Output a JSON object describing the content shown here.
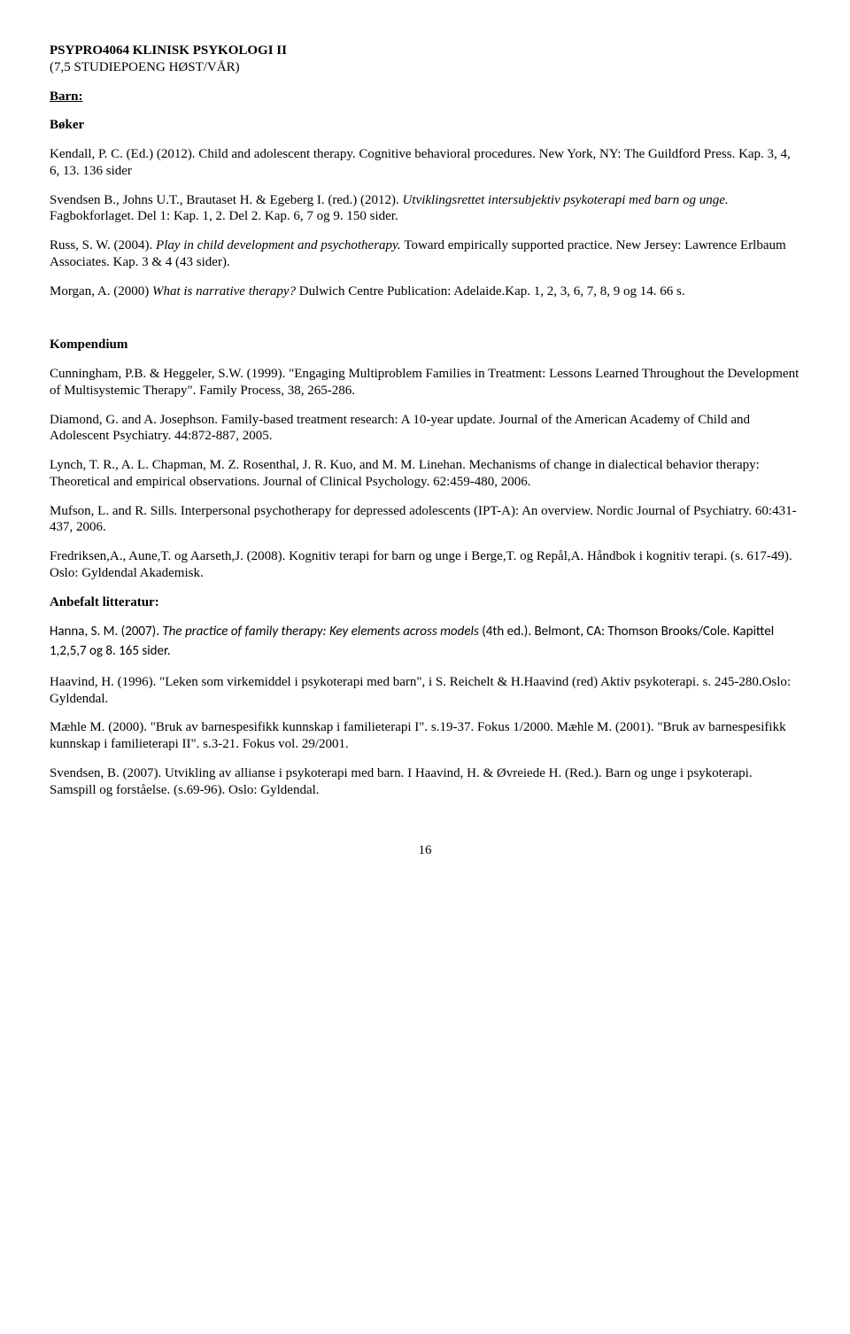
{
  "course_code_title": "PSYPRO4064 KLINISK PSYKOLOGI II",
  "course_credits": "(7,5 STUDIEPOENG HØST/VÅR)",
  "section_barn": "Barn:",
  "section_boker": "Bøker",
  "refs": {
    "kendall_a": "Kendall, P. C. (Ed.) (2012). Child and adolescent therapy. Cognitive behavioral procedures. ",
    "kendall_b": "New York, NY: The Guildford Press. Kap. 3, 4, 6, 13. 136 sider",
    "svendsen_a": "Svendsen B., Johns U.T., Brautaset H. & Egeberg I. (red.) (2012). ",
    "svendsen_b": "Utviklingsrettet intersubjektiv psykoterapi med barn og unge. ",
    "svendsen_c": "Fagbokforlaget. Del 1: Kap. 1, 2. Del 2. Kap. 6, 7 og 9. 150 sider.",
    "russ_a": "Russ, S. W. (2004). ",
    "russ_b": "Play in child development and psychotherapy. ",
    "russ_c": "Toward empirically supported practice. New Jersey: Lawrence Erlbaum Associates. Kap. 3 & 4 (43 sider).",
    "morgan_a": "Morgan, A. (2000) ",
    "morgan_b": "What is narrative therapy? ",
    "morgan_c": "Dulwich Centre Publication: Adelaide.Kap. 1, 2, 3, 6, 7, 8, 9 og 14. 66 s."
  },
  "section_kompendium": "Kompendium",
  "komp": {
    "cunningham": "Cunningham, P.B. & Heggeler, S.W. (1999). \"Engaging Multiproblem Families in Treatment: Lessons Learned Throughout the Development of Multisystemic Therapy\". Family Process, 38, 265-286.",
    "diamond": "Diamond, G. and A. Josephson. Family-based treatment research: A 10-year update. Journal of the American Academy of Child and Adolescent Psychiatry. 44:872-887, 2005.",
    "lynch": "Lynch, T. R., A. L. Chapman, M. Z. Rosenthal, J. R. Kuo, and M. M. Linehan. Mechanisms of change in dialectical behavior therapy: Theoretical and empirical observations. Journal of Clinical Psychology. 62:459-480, 2006.",
    "mufson": "Mufson, L. and R. Sills. Interpersonal psychotherapy for depressed adolescents (IPT-A): An overview. Nordic Journal of Psychiatry. 60:431-437, 2006.",
    "fredriksen": "Fredriksen,A., Aune,T. og Aarseth,J. (2008). Kognitiv terapi for barn og unge i Berge,T. og Repål,A. Håndbok i kognitiv terapi. (s. 617-49). Oslo: Gyldendal Akademisk."
  },
  "section_anbefalt": "Anbefalt litteratur:",
  "anbefalt": {
    "hanna_a": "Hanna, S. M. (2007). ",
    "hanna_b": "The practice of family therapy: Key elements across models ",
    "hanna_c": "(4th ed.). Belmont, CA: Thomson Brooks/Cole. Kapittel 1,2,5,7 og 8. 165 sider.",
    "haavind": "Haavind, H. (1996). \"Leken som virkemiddel i psykoterapi med barn\", i S. Reichelt & H.Haavind (red) Aktiv psykoterapi. s. 245-280.Oslo: Gyldendal.",
    "maehle": "Mæhle M. (2000). \"Bruk av barnespesifikk kunnskap i familieterapi I\". s.19-37. Fokus 1/2000. Mæhle M. (2001). \"Bruk av barnespesifikk kunnskap i familieterapi II\". s.3-21. Fokus vol. 29/2001.",
    "svendsen2": "Svendsen, B. (2007). Utvikling av allianse i psykoterapi med barn. I Haavind, H. & Øvreiede H. (Red.). Barn og unge i psykoterapi. Samspill og forståelse. (s.69-96). Oslo: Gyldendal."
  },
  "page_number": "16"
}
